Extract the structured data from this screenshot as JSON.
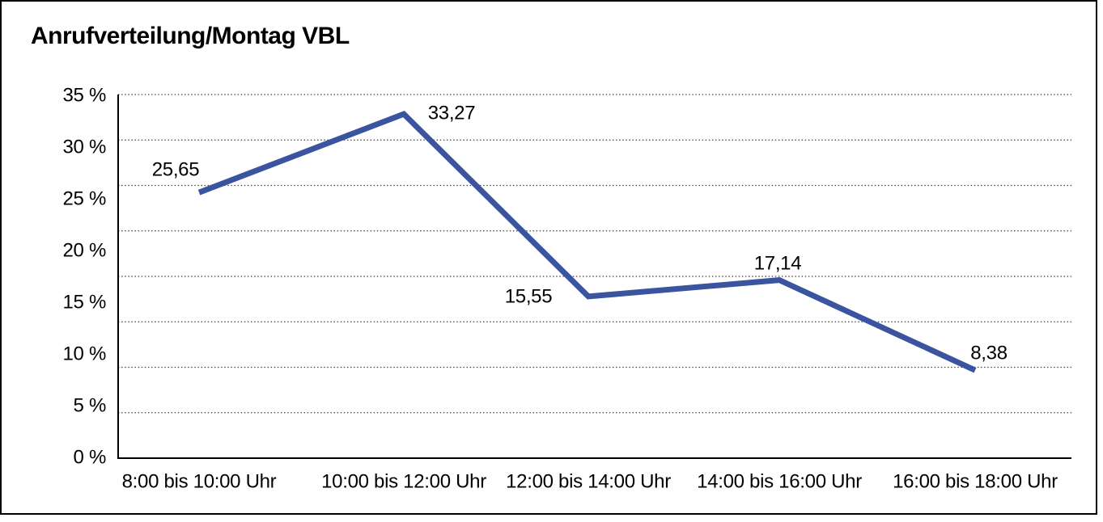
{
  "window": {
    "title": "Anrufverteilung/Montag VBL"
  },
  "chart_data": {
    "type": "line",
    "title": "Anrufverteilung/Montag VBL",
    "categories": [
      "8:00 bis 10:00 Uhr",
      "10:00 bis 12:00 Uhr",
      "12:00 bis 14:00 Uhr",
      "14:00 bis 16:00 Uhr",
      "16:00 bis 18:00 Uhr"
    ],
    "values": [
      25.65,
      33.27,
      15.55,
      17.14,
      8.38
    ],
    "value_labels": [
      "25,65",
      "33,27",
      "15,55",
      "17,14",
      "8,38"
    ],
    "unit": "%",
    "y_ticks": [
      "35 %",
      "30 %",
      "25 %",
      "20 %",
      "15 %",
      "10 %",
      "5 %",
      "0 %"
    ],
    "ylim": [
      0,
      35
    ],
    "y_tick_step": 5,
    "xlabel": "",
    "ylabel": "",
    "legend": "none",
    "grid": "horizontal-dotted",
    "line_color": "#3A54A0",
    "grid_color": "#404040",
    "axis_color": "#000000",
    "text_color": "#000000",
    "background_color": "#ffffff"
  }
}
